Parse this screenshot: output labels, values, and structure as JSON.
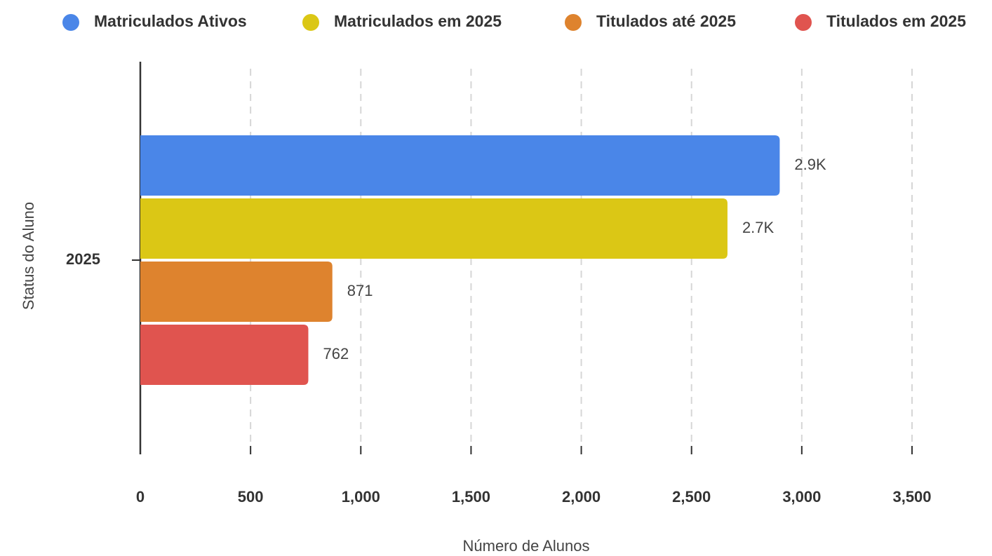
{
  "chart_data": {
    "type": "bar",
    "orientation": "horizontal",
    "x_label": "Número de Alunos",
    "y_label": "Status do Aluno",
    "categories": [
      "2025"
    ],
    "series": [
      {
        "name": "Matriculados Ativos",
        "color": "#4a86e8",
        "values": [
          2900
        ],
        "value_labels": [
          "2.9K"
        ]
      },
      {
        "name": "Matriculados em 2025",
        "color": "#dbc715",
        "values": [
          2663
        ],
        "value_labels": [
          "2.7K"
        ]
      },
      {
        "name": "Titulados até 2025",
        "color": "#de832e",
        "values": [
          871
        ]
      },
      {
        "name": "Titulados em 2025",
        "color": "#e0544f",
        "values": [
          762
        ]
      }
    ],
    "xlim": [
      0,
      3500
    ],
    "xticks": [
      0,
      500,
      {
        "value": 1000,
        "label": "1,000"
      },
      {
        "value": 1500,
        "label": "1,500"
      },
      {
        "value": 2000,
        "label": "2,000"
      },
      {
        "value": 2500,
        "label": "2,500"
      },
      {
        "value": 3000,
        "label": "3,000"
      },
      {
        "value": 3500,
        "label": "3,500"
      }
    ],
    "grid": true,
    "legend": "top"
  }
}
